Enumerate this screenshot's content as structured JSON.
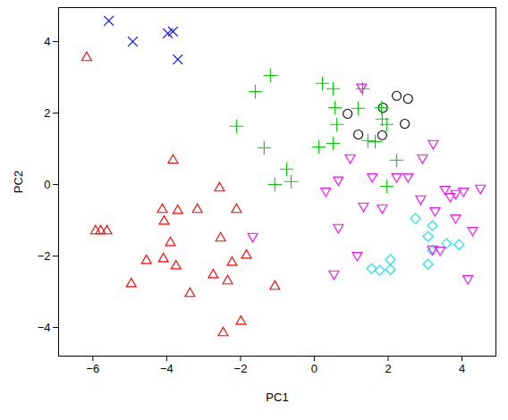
{
  "chart_data": {
    "type": "scatter",
    "x_label": "PC1",
    "y_label": "PC2",
    "xlim": [
      -6.93,
      4.92
    ],
    "ylim": [
      -4.8,
      4.95
    ],
    "xticks": [
      -6,
      -4,
      -2,
      0,
      2,
      4
    ],
    "yticks": [
      -4,
      -2,
      0,
      2,
      4
    ],
    "grid": false,
    "series": [
      {
        "color": "#000000",
        "marker": "circle",
        "x": [
          0.9,
          2.23,
          2.54,
          1.86,
          1.19,
          1.84,
          2.45
        ],
        "y": [
          1.98,
          2.48,
          2.4,
          2.15,
          1.4,
          1.38,
          1.7
        ]
      },
      {
        "color": "#ff0000",
        "marker": "triangle",
        "x": [
          -6.17,
          -3.83,
          -5.93,
          -5.79,
          -5.62,
          -4.12,
          -4.07,
          -3.7,
          -3.17,
          -2.57,
          -2.11,
          -3.9,
          -4.55,
          -4.09,
          -3.75,
          -4.96,
          -3.37,
          -2.54,
          -2.23,
          -1.84,
          -2.74,
          -2.35,
          -1.07,
          -1.99,
          -2.47
        ],
        "y": [
          3.55,
          0.68,
          -1.3,
          -1.3,
          -1.3,
          -0.7,
          -1.03,
          -0.73,
          -0.7,
          -0.1,
          -0.7,
          -1.63,
          -2.13,
          -2.08,
          -2.28,
          -2.78,
          -3.05,
          -1.5,
          -2.18,
          -1.98,
          -2.53,
          -2.7,
          -2.85,
          -3.83,
          -4.15
        ]
      },
      {
        "color": "#00cd00",
        "marker": "plus",
        "x": [
          -1.6,
          -1.19,
          -2.11,
          -1.36,
          -0.75,
          -1.07,
          -0.63,
          0.22,
          0.51,
          0.56,
          0.61,
          0.51,
          0.12,
          1.45,
          1.65,
          1.19,
          1.82,
          1.84,
          1.96,
          2.23,
          1.96,
          1.31
        ],
        "y": [
          2.6,
          3.05,
          1.63,
          1.03,
          0.43,
          0.0,
          0.08,
          2.83,
          2.68,
          2.15,
          1.68,
          1.15,
          1.05,
          1.23,
          1.2,
          2.13,
          2.15,
          1.83,
          1.68,
          0.68,
          -0.05,
          2.68
        ]
      },
      {
        "color": "#0000ff",
        "marker": "x",
        "x": [
          -5.57,
          -4.92,
          -3.97,
          -3.83,
          -3.7
        ],
        "y": [
          4.58,
          4.0,
          4.23,
          4.28,
          3.5
        ]
      },
      {
        "color": "#00e5ee",
        "marker": "diamond",
        "x": [
          1.55,
          1.77,
          2.06,
          2.06,
          2.74,
          3.08,
          3.2,
          3.08,
          3.2,
          3.58,
          3.92
        ],
        "y": [
          -2.35,
          -2.4,
          -2.1,
          -2.38,
          -0.95,
          -1.45,
          -1.15,
          -2.23,
          -1.85,
          -1.65,
          -1.68
        ]
      },
      {
        "color": "#ff00ff",
        "marker": "triangle_down",
        "x": [
          1.28,
          0.31,
          0.65,
          0.65,
          0.53,
          0.97,
          1.57,
          1.33,
          1.84,
          1.16,
          -1.67,
          2.23,
          2.54,
          2.93,
          3.22,
          2.88,
          3.27,
          3.54,
          3.68,
          4.04,
          3.83,
          4.5,
          3.83,
          4.29,
          3.41,
          3.2,
          4.16
        ],
        "y": [
          2.73,
          -0.18,
          0.13,
          -1.2,
          -2.5,
          0.75,
          0.22,
          -0.6,
          -0.65,
          -1.98,
          -1.45,
          0.22,
          0.22,
          0.75,
          1.15,
          -0.4,
          -0.73,
          -0.13,
          -0.33,
          -0.18,
          -0.25,
          -0.1,
          -0.93,
          -1.28,
          -1.83,
          -1.8,
          -2.63
        ]
      }
    ]
  }
}
